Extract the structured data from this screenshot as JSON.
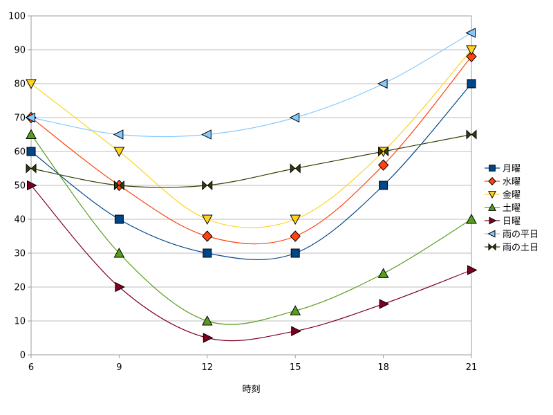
{
  "chart_data": {
    "type": "line",
    "title": "",
    "xlabel": "時刻",
    "ylabel": "",
    "x": [
      6,
      9,
      12,
      15,
      18,
      21
    ],
    "xticks": [
      6,
      9,
      12,
      15,
      18,
      21
    ],
    "yticks": [
      0,
      10,
      20,
      30,
      40,
      50,
      60,
      70,
      80,
      90,
      100
    ],
    "xlim": [
      6,
      21
    ],
    "ylim": [
      0,
      100
    ],
    "grid": "horizontal-only",
    "smooth_lines": true,
    "legend_position": "right",
    "series": [
      {
        "name": "月曜",
        "marker": "square",
        "color": "#004586",
        "values": [
          60,
          40,
          30,
          30,
          50,
          80
        ]
      },
      {
        "name": "水曜",
        "marker": "diamond",
        "color": "#FF420E",
        "values": [
          70,
          50,
          35,
          35,
          56,
          88
        ]
      },
      {
        "name": "金曜",
        "marker": "triangle-down",
        "color": "#FFD320",
        "values": [
          80,
          60,
          40,
          40,
          60,
          90
        ]
      },
      {
        "name": "土曜",
        "marker": "triangle-up",
        "color": "#579D1C",
        "values": [
          65,
          30,
          10,
          13,
          24,
          40
        ]
      },
      {
        "name": "日曜",
        "marker": "triangle-right",
        "color": "#7E0021",
        "values": [
          50,
          20,
          5,
          7,
          15,
          25
        ]
      },
      {
        "name": "雨の平日",
        "marker": "triangle-left",
        "color": "#83CAFF",
        "values": [
          70,
          65,
          65,
          70,
          80,
          95
        ]
      },
      {
        "name": "雨の土日",
        "marker": "bowtie",
        "color": "#314004",
        "values": [
          55,
          50,
          50,
          55,
          60,
          65
        ]
      }
    ],
    "colors": {
      "background": "#ffffff",
      "grid_line": "#bdbdbd",
      "axis_line": "#9e9e9e",
      "tick_text": "#000000",
      "marker_border": "#000000"
    }
  }
}
